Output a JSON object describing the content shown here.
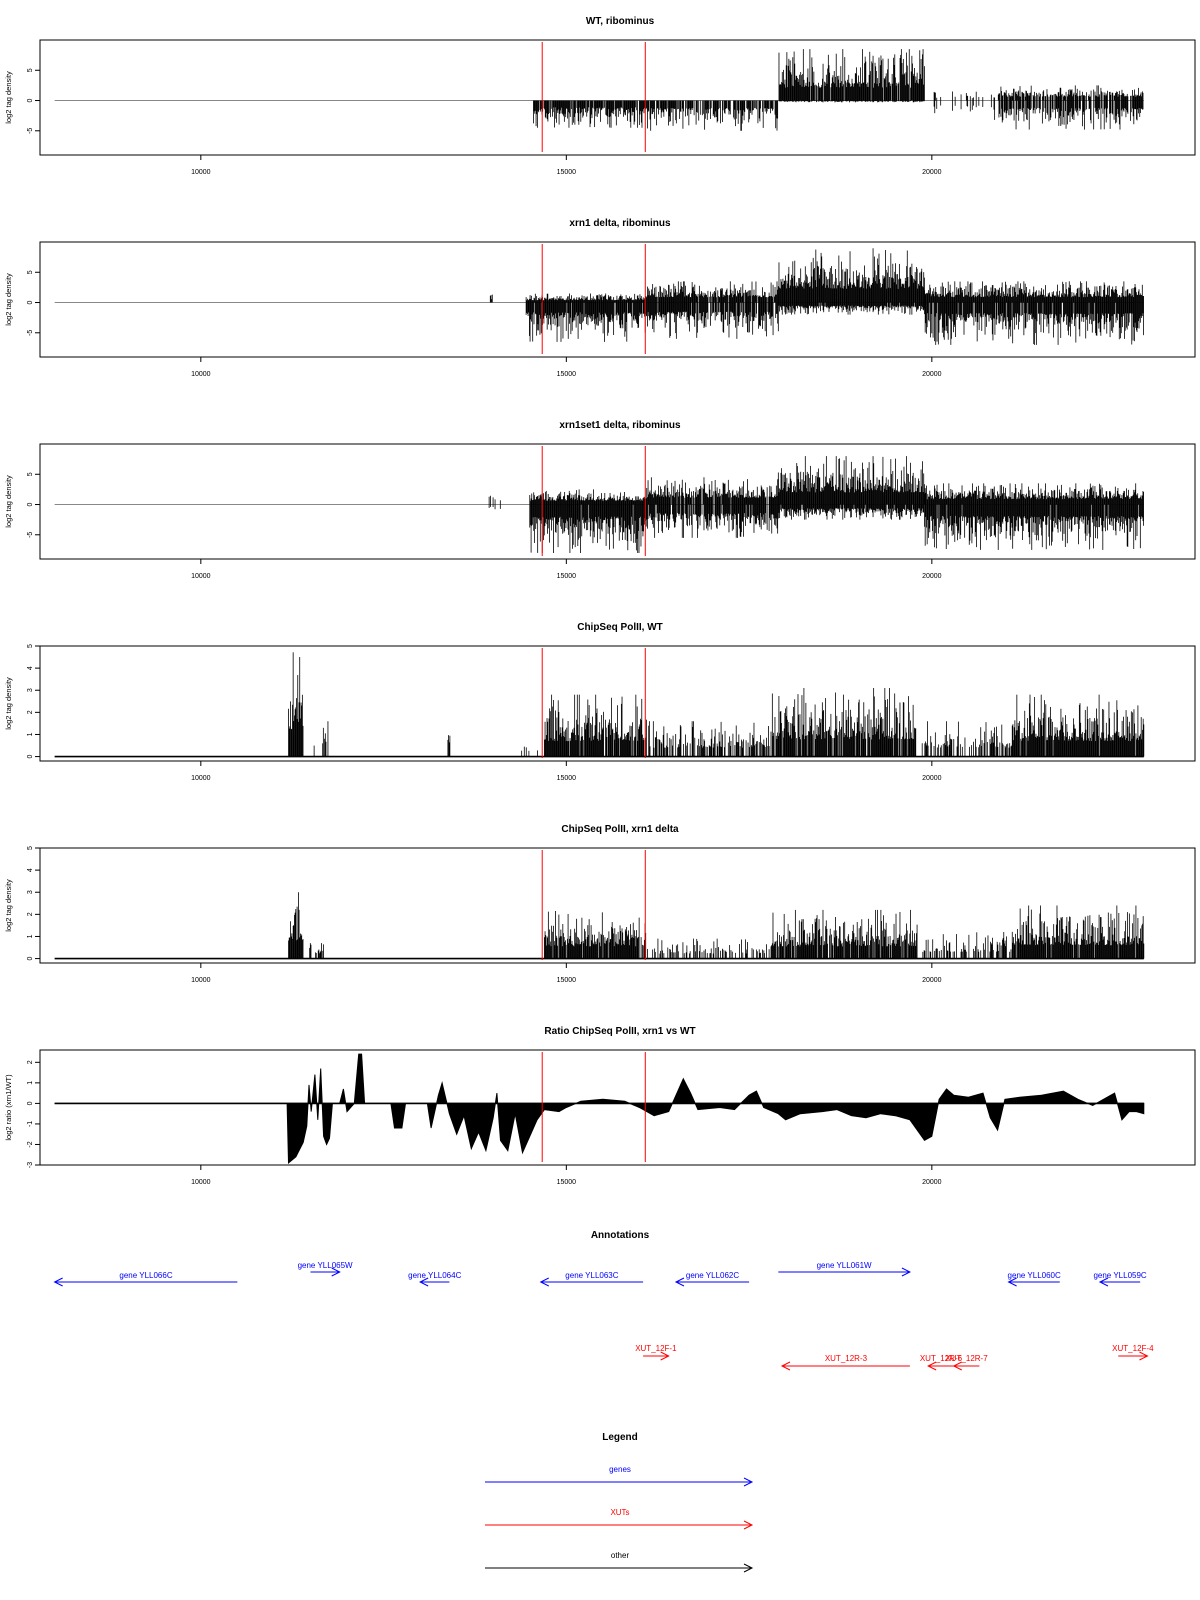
{
  "chart_data": [
    {
      "type": "bar",
      "title": "WT, ribominus",
      "ylabel": "log2 tag density",
      "xlim": [
        7800,
        23600
      ],
      "ylim": [
        -9,
        10
      ],
      "x_ticks": [
        10000,
        15000,
        20000
      ],
      "y_ticks": [
        -5,
        0,
        5
      ],
      "markers_x": [
        14670,
        16080
      ],
      "baseline_range": [
        8000,
        22900
      ],
      "segments": [
        {
          "from": 14550,
          "to": 16100,
          "pos_max": 0,
          "neg_max": 4.5,
          "density": 0.9
        },
        {
          "from": 16100,
          "to": 17900,
          "pos_max": 0,
          "neg_max": 5,
          "density": 0.8
        },
        {
          "from": 17900,
          "to": 19900,
          "pos_max": 8.5,
          "neg_max": 0.3,
          "density": 0.95
        },
        {
          "from": 19950,
          "to": 20900,
          "pos_max": 1.5,
          "neg_max": 3.2,
          "density": 0.25
        },
        {
          "from": 20900,
          "to": 22900,
          "pos_max": 2.5,
          "neg_max": 4.8,
          "density": 0.8
        }
      ]
    },
    {
      "type": "bar",
      "title": "xrn1 delta, ribominus",
      "ylabel": "log2 tag density",
      "xlim": [
        7800,
        23600
      ],
      "ylim": [
        -9,
        10
      ],
      "x_ticks": [
        10000,
        15000,
        20000
      ],
      "y_ticks": [
        -5,
        0,
        5
      ],
      "markers_x": [
        14670,
        16080
      ],
      "baseline_range": [
        8000,
        22900
      ],
      "segments": [
        {
          "from": 13960,
          "to": 13990,
          "pos_max": 2,
          "neg_max": 0,
          "density": 1
        },
        {
          "from": 14450,
          "to": 16100,
          "pos_max": 1.5,
          "neg_max": 6.5,
          "density": 1
        },
        {
          "from": 16100,
          "to": 17900,
          "pos_max": 3.5,
          "neg_max": 6,
          "density": 0.95
        },
        {
          "from": 17900,
          "to": 19900,
          "pos_max": 9,
          "neg_max": 2,
          "density": 1
        },
        {
          "from": 19900,
          "to": 22900,
          "pos_max": 3.5,
          "neg_max": 7,
          "density": 1
        }
      ]
    },
    {
      "type": "bar",
      "title": "xrn1set1 delta, ribominus",
      "ylabel": "log2 tag density",
      "xlim": [
        7800,
        23600
      ],
      "ylim": [
        -9,
        10
      ],
      "x_ticks": [
        10000,
        15000,
        20000
      ],
      "y_ticks": [
        -5,
        0,
        5
      ],
      "markers_x": [
        14670,
        16080
      ],
      "baseline_range": [
        8000,
        22900
      ],
      "segments": [
        {
          "from": 13800,
          "to": 14100,
          "pos_max": 2.2,
          "neg_max": 1.3,
          "density": 0.3
        },
        {
          "from": 14500,
          "to": 16100,
          "pos_max": 2.5,
          "neg_max": 8,
          "density": 1
        },
        {
          "from": 16100,
          "to": 17900,
          "pos_max": 4.5,
          "neg_max": 5.5,
          "density": 0.9
        },
        {
          "from": 17900,
          "to": 19900,
          "pos_max": 8,
          "neg_max": 2.5,
          "density": 1
        },
        {
          "from": 19900,
          "to": 22900,
          "pos_max": 3.5,
          "neg_max": 7.5,
          "density": 1
        }
      ]
    },
    {
      "type": "bar",
      "title": "ChipSeq PolII, WT",
      "ylabel": "log2 tag density",
      "xlim": [
        7800,
        23600
      ],
      "ylim": [
        -0.2,
        5
      ],
      "x_ticks": [
        10000,
        15000,
        20000
      ],
      "y_ticks": [
        0,
        1,
        2,
        3,
        4,
        5
      ],
      "markers_x": [
        14670,
        16080
      ],
      "baseline_range": [
        8000,
        22900
      ],
      "segments": [
        {
          "from": 11200,
          "to": 11400,
          "pos_max": 4.9,
          "neg_max": 0,
          "density": 1
        },
        {
          "from": 11550,
          "to": 11760,
          "pos_max": 1.6,
          "neg_max": 0,
          "density": 0.3
        },
        {
          "from": 13380,
          "to": 13410,
          "pos_max": 1.6,
          "neg_max": 0,
          "density": 1
        },
        {
          "from": 14380,
          "to": 14620,
          "pos_max": 1,
          "neg_max": 0,
          "density": 0.2
        },
        {
          "from": 14700,
          "to": 16100,
          "pos_max": 2.8,
          "neg_max": 0,
          "density": 0.9
        },
        {
          "from": 16100,
          "to": 17800,
          "pos_max": 1.6,
          "neg_max": 0,
          "density": 0.6
        },
        {
          "from": 17800,
          "to": 19800,
          "pos_max": 3.1,
          "neg_max": 0,
          "density": 0.9
        },
        {
          "from": 19850,
          "to": 21100,
          "pos_max": 1.6,
          "neg_max": 0,
          "density": 0.5
        },
        {
          "from": 21100,
          "to": 22900,
          "pos_max": 2.8,
          "neg_max": 0,
          "density": 0.95
        }
      ]
    },
    {
      "type": "bar",
      "title": "ChipSeq PolII, xrn1 delta",
      "ylabel": "log2 tag density",
      "xlim": [
        7800,
        23600
      ],
      "ylim": [
        -0.2,
        5
      ],
      "x_ticks": [
        10000,
        15000,
        20000
      ],
      "y_ticks": [
        0,
        1,
        2,
        3,
        4,
        5
      ],
      "markers_x": [
        14670,
        16080
      ],
      "baseline_range": [
        8000,
        22900
      ],
      "segments": [
        {
          "from": 11200,
          "to": 11400,
          "pos_max": 3,
          "neg_max": 0,
          "density": 1
        },
        {
          "from": 11480,
          "to": 11680,
          "pos_max": 0.7,
          "neg_max": 0,
          "density": 0.3
        },
        {
          "from": 14700,
          "to": 16100,
          "pos_max": 2.2,
          "neg_max": 0,
          "density": 0.95
        },
        {
          "from": 16100,
          "to": 17800,
          "pos_max": 0.9,
          "neg_max": 0,
          "density": 0.45
        },
        {
          "from": 17800,
          "to": 19800,
          "pos_max": 2.2,
          "neg_max": 0,
          "density": 0.9
        },
        {
          "from": 19850,
          "to": 21100,
          "pos_max": 1.2,
          "neg_max": 0,
          "density": 0.4
        },
        {
          "from": 21100,
          "to": 22900,
          "pos_max": 2.4,
          "neg_max": 0,
          "density": 0.95
        }
      ]
    },
    {
      "type": "area",
      "title": "Ratio ChipSeq PolII, xrn1 vs WT",
      "ylabel": "log2 ratio (xrn1/WT)",
      "xlim": [
        7800,
        23600
      ],
      "ylim": [
        -3,
        2.6
      ],
      "x_ticks": [
        10000,
        15000,
        20000
      ],
      "y_ticks": [
        -3,
        -2,
        -1,
        0,
        1,
        2
      ],
      "markers_x": [
        14670,
        16080
      ],
      "baseline_range": [
        8000,
        22900
      ],
      "profile": [
        [
          8000,
          0
        ],
        [
          11180,
          0
        ],
        [
          11200,
          -2.9
        ],
        [
          11300,
          -2.6
        ],
        [
          11400,
          -1.9
        ],
        [
          11450,
          -1.1
        ],
        [
          11480,
          0.9
        ],
        [
          11510,
          -0.4
        ],
        [
          11560,
          1.4
        ],
        [
          11600,
          -0.8
        ],
        [
          11640,
          1.7
        ],
        [
          11680,
          -1.6
        ],
        [
          11720,
          -2.0
        ],
        [
          11760,
          -1.7
        ],
        [
          11800,
          0
        ],
        [
          11900,
          0
        ],
        [
          11950,
          0.7
        ],
        [
          12000,
          -0.4
        ],
        [
          12100,
          0
        ],
        [
          12160,
          2.4
        ],
        [
          12200,
          2.4
        ],
        [
          12240,
          0
        ],
        [
          12600,
          0
        ],
        [
          12650,
          -1.2
        ],
        [
          12750,
          -1.2
        ],
        [
          12800,
          0
        ],
        [
          13100,
          0
        ],
        [
          13150,
          -1.2
        ],
        [
          13250,
          0.4
        ],
        [
          13300,
          1.0
        ],
        [
          13400,
          -0.5
        ],
        [
          13500,
          -1.5
        ],
        [
          13600,
          -0.6
        ],
        [
          13700,
          -2.2
        ],
        [
          13800,
          -1.4
        ],
        [
          13900,
          -2.3
        ],
        [
          14000,
          -0.7
        ],
        [
          14050,
          0.5
        ],
        [
          14100,
          -1.8
        ],
        [
          14200,
          -2.3
        ],
        [
          14300,
          -0.5
        ],
        [
          14400,
          -2.4
        ],
        [
          14500,
          -1.6
        ],
        [
          14600,
          -0.8
        ],
        [
          14700,
          -0.3
        ],
        [
          14900,
          -0.4
        ],
        [
          15000,
          -0.2
        ],
        [
          15200,
          0.1
        ],
        [
          15500,
          0.2
        ],
        [
          15800,
          0.1
        ],
        [
          16000,
          -0.2
        ],
        [
          16200,
          -0.6
        ],
        [
          16400,
          -0.4
        ],
        [
          16500,
          0.4
        ],
        [
          16600,
          1.2
        ],
        [
          16700,
          0.5
        ],
        [
          16800,
          -0.3
        ],
        [
          17100,
          -0.2
        ],
        [
          17300,
          -0.3
        ],
        [
          17500,
          0.4
        ],
        [
          17600,
          0.6
        ],
        [
          17700,
          -0.2
        ],
        [
          17900,
          -0.5
        ],
        [
          18000,
          -0.8
        ],
        [
          18200,
          -0.5
        ],
        [
          18500,
          -0.4
        ],
        [
          18700,
          -0.3
        ],
        [
          18900,
          -0.6
        ],
        [
          19100,
          -0.7
        ],
        [
          19300,
          -0.5
        ],
        [
          19500,
          -0.6
        ],
        [
          19700,
          -0.8
        ],
        [
          19900,
          -1.8
        ],
        [
          20000,
          -1.6
        ],
        [
          20100,
          0.2
        ],
        [
          20200,
          0.7
        ],
        [
          20300,
          0.4
        ],
        [
          20500,
          0.3
        ],
        [
          20700,
          0.5
        ],
        [
          20800,
          -0.7
        ],
        [
          20900,
          -1.3
        ],
        [
          21000,
          0.2
        ],
        [
          21200,
          0.3
        ],
        [
          21500,
          0.4
        ],
        [
          21800,
          0.6
        ],
        [
          22000,
          0.2
        ],
        [
          22200,
          -0.1
        ],
        [
          22400,
          0.3
        ],
        [
          22500,
          0.5
        ],
        [
          22600,
          -0.8
        ],
        [
          22700,
          -0.4
        ],
        [
          22800,
          -0.4
        ],
        [
          22900,
          -0.5
        ]
      ]
    }
  ],
  "annotations": {
    "title": "Annotations",
    "genes": [
      {
        "label": "gene YLL066C",
        "from": 8000,
        "to": 10500,
        "dir": "left",
        "y_level": 1
      },
      {
        "label": "gene YLL065W",
        "from": 11500,
        "to": 11900,
        "dir": "right",
        "y_level": 0
      },
      {
        "label": "gene YLL064C",
        "from": 13000,
        "to": 13400,
        "dir": "left",
        "y_level": 1
      },
      {
        "label": "gene YLL063C",
        "from": 14650,
        "to": 16050,
        "dir": "left",
        "y_level": 1
      },
      {
        "label": "gene YLL062C",
        "from": 16500,
        "to": 17500,
        "dir": "left",
        "y_level": 1
      },
      {
        "label": "gene YLL061W",
        "from": 17900,
        "to": 19700,
        "dir": "right",
        "y_level": 0
      },
      {
        "label": "gene YLL060C",
        "from": 21050,
        "to": 21750,
        "dir": "left",
        "y_level": 1
      },
      {
        "label": "gene YLL059C",
        "from": 22300,
        "to": 22850,
        "dir": "left",
        "y_level": 1
      }
    ],
    "xuts": [
      {
        "label": "XUT_12F-1",
        "from": 16050,
        "to": 16400,
        "dir": "right",
        "y_level": 0
      },
      {
        "label": "XUT_12R-3",
        "from": 17950,
        "to": 19700,
        "dir": "left",
        "y_level": 1
      },
      {
        "label": "XUT_12R-6",
        "from": 19950,
        "to": 20300,
        "dir": "left",
        "y_level": 1
      },
      {
        "label": "XUT_12R-7",
        "from": 20300,
        "to": 20650,
        "dir": "left",
        "y_level": 1
      },
      {
        "label": "XUT_12F-4",
        "from": 22550,
        "to": 22950,
        "dir": "right",
        "y_level": 0
      }
    ]
  },
  "legend": {
    "title": "Legend",
    "items": [
      {
        "label": "genes",
        "color": "#0000ff"
      },
      {
        "label": "XUTs",
        "color": "#ff0000"
      },
      {
        "label": "other",
        "color": "#000000"
      }
    ]
  },
  "colors": {
    "gene": "#0000ff",
    "xut": "#ff0000",
    "marker": "#ff0000",
    "data": "#000000",
    "baseline": "#888888"
  }
}
